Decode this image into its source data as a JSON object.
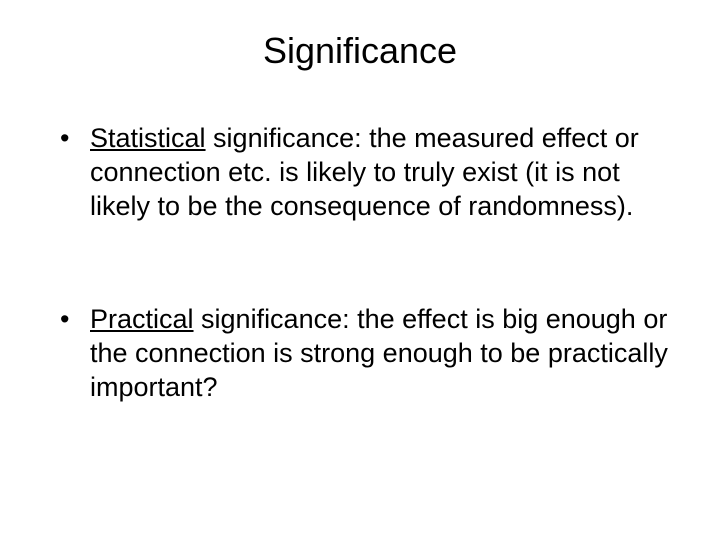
{
  "title": "Significance",
  "bullets": [
    {
      "underlined": "Statistical",
      "rest": " significance: the measured effect or connection etc. is likely to truly exist (it is not likely to be the consequence of randomness)."
    },
    {
      "underlined": "Practical",
      "rest": " significance: the effect is big enough or the connection is strong enough to be practically important?"
    }
  ],
  "colors": {
    "background": "#ffffff",
    "text": "#000000"
  },
  "typography": {
    "title_fontsize": 36,
    "body_fontsize": 27,
    "font_family": "Arial"
  }
}
